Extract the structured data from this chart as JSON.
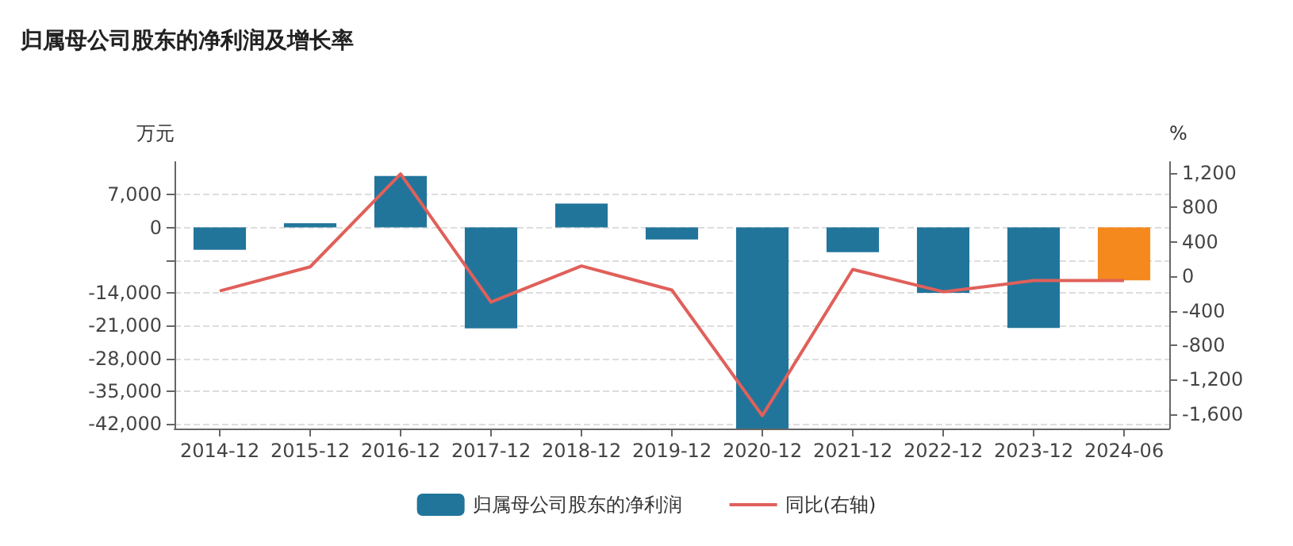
{
  "chart_data": {
    "type": "bar",
    "title": "归属母公司股东的净利润及增长率",
    "ylabel": "万元",
    "y2label": "%",
    "categories": [
      "2014-12",
      "2015-12",
      "2016-12",
      "2017-12",
      "2018-12",
      "2019-12",
      "2020-12",
      "2021-12",
      "2022-12",
      "2023-12",
      "2024-06"
    ],
    "series": [
      {
        "name": "归属母公司股东的净利润",
        "color": "#21759b",
        "colors": [
          "#21759b",
          "#21759b",
          "#21759b",
          "#21759b",
          "#21759b",
          "#21759b",
          "#21759b",
          "#21759b",
          "#21759b",
          "#21759b",
          "#f5891e"
        ],
        "values": [
          -4800,
          900,
          11000,
          -21600,
          5100,
          -2600,
          -43000,
          -5300,
          -14000,
          -21500,
          -11300
        ]
      },
      {
        "name": "同比(右轴)",
        "type": "line",
        "axis": "y2",
        "color": "#e0605a",
        "values": [
          -170,
          110,
          1190,
          -300,
          120,
          -160,
          -1620,
          80,
          -180,
          -50,
          -50
        ]
      }
    ],
    "ylim": [
      -43000,
      14000
    ],
    "yticks": [
      {
        "value": 7000,
        "label": "7,000"
      },
      0,
      {
        "value": -7000,
        "label": null
      },
      {
        "value": -14000,
        "label": "-14,000"
      },
      {
        "value": -21000,
        "label": "-21,000"
      },
      {
        "value": -28000,
        "label": "-28,000"
      },
      {
        "value": -35000,
        "label": "-35,000"
      },
      {
        "value": -42000,
        "label": "-42,000"
      }
    ],
    "y2lim": [
      -1770,
      1330
    ],
    "y2ticks": [
      {
        "value": 1200,
        "label": "1,200"
      },
      800,
      400,
      0,
      -400,
      -800,
      {
        "value": -1200,
        "label": "-1,200"
      },
      {
        "value": -1600,
        "label": "-1,600"
      }
    ],
    "grid": "y",
    "legend": "bottom",
    "marker": "none",
    "line_style": "solid"
  }
}
